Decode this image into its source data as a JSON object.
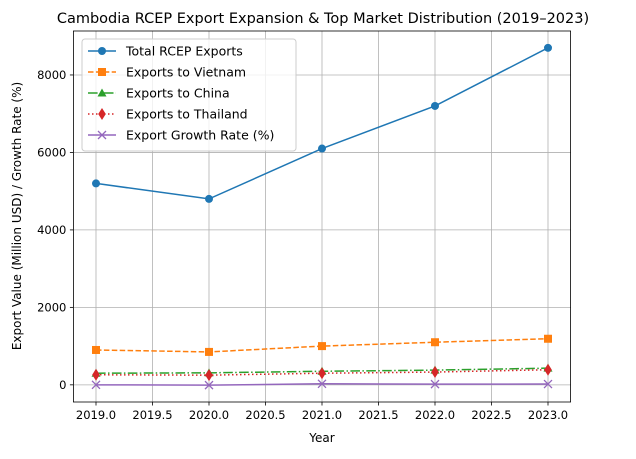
{
  "chart_data": {
    "type": "line",
    "title": "Cambodia RCEP Export Expansion & Top Market Distribution (2019–2023)",
    "xlabel": "Year",
    "ylabel": "Export Value (Million USD) / Growth Rate (%)",
    "x": [
      2019,
      2020,
      2021,
      2022,
      2023
    ],
    "xlim": [
      2018.8,
      2023.2
    ],
    "ylim": [
      -443,
      9135
    ],
    "xticks": [
      "2019.0",
      "2019.5",
      "2020.0",
      "2020.5",
      "2021.0",
      "2021.5",
      "2022.0",
      "2022.5",
      "2023.0"
    ],
    "yticks": [
      "0",
      "2000",
      "4000",
      "6000",
      "8000"
    ],
    "grid": true,
    "legend_position": "top-left",
    "series": [
      {
        "name": "Total RCEP Exports",
        "values": [
          5200,
          4800,
          6100,
          7200,
          8700
        ],
        "color": "#1f77b4",
        "linestyle": "solid",
        "marker": "circle"
      },
      {
        "name": "Exports to Vietnam",
        "values": [
          900,
          850,
          1000,
          1100,
          1190
        ],
        "color": "#ff7f0e",
        "linestyle": "dashed",
        "marker": "square"
      },
      {
        "name": "Exports to China",
        "values": [
          300,
          310,
          350,
          380,
          430
        ],
        "color": "#2ca02c",
        "linestyle": "dashdot",
        "marker": "triangle"
      },
      {
        "name": "Exports to Thailand",
        "values": [
          260,
          250,
          300,
          330,
          390
        ],
        "color": "#d62728",
        "linestyle": "dotted",
        "marker": "diamond"
      },
      {
        "name": "Export Growth Rate (%)",
        "values": [
          0,
          -7.7,
          27.1,
          18.0,
          20.8
        ],
        "color": "#9467bd",
        "linestyle": "solid",
        "marker": "x"
      }
    ]
  }
}
